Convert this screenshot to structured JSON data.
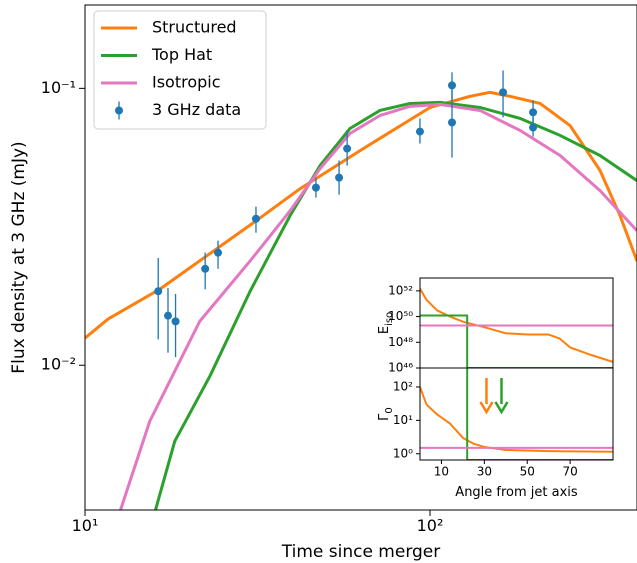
{
  "chart_data": [
    {
      "type": "line",
      "xlabel": "Time since merger",
      "ylabel": "Flux density at 3 GHz (mJy)",
      "xscale": "log",
      "yscale": "log",
      "xlim": [
        10,
        398
      ],
      "ylim": [
        0.003,
        0.2
      ],
      "xticks": [
        {
          "value": 10,
          "label": "10¹"
        },
        {
          "value": 100,
          "label": "10²"
        }
      ],
      "yticks": [
        {
          "value": 0.01,
          "label": "10⁻²"
        },
        {
          "value": 0.1,
          "label": "10⁻¹"
        }
      ],
      "legend": "upper left",
      "series": [
        {
          "name": "Structured",
          "color": "#ff7f0e",
          "kind": "line",
          "x": [
            10,
            11.66,
            16.5,
            31.3,
            42.0,
            62.7,
            100,
            130.6,
            149.2,
            170.6,
            208.4,
            254.6,
            311,
            355.4,
            398
          ],
          "values": [
            0.01253,
            0.01468,
            0.01885,
            0.0332,
            0.0434,
            0.0596,
            0.0853,
            0.0936,
            0.0967,
            0.0936,
            0.0882,
            0.0734,
            0.0505,
            0.0347,
            0.0238
          ]
        },
        {
          "name": "Top Hat",
          "color": "#2ca02c",
          "kind": "line",
          "x": [
            15.96,
            18.2,
            23.0,
            30.1,
            39.3,
            48.0,
            58.6,
            71.6,
            87.5,
            106.9,
            139.6,
            182.3,
            238.2,
            311,
            398
          ],
          "values": [
            0.00296,
            0.00531,
            0.00912,
            0.0185,
            0.0347,
            0.0526,
            0.0716,
            0.0832,
            0.0882,
            0.089,
            0.0853,
            0.0779,
            0.0676,
            0.0572,
            0.0464
          ]
        },
        {
          "name": "Isotropic",
          "color": "#e377c2",
          "kind": "line",
          "x": [
            12.63,
            15.4,
            21.5,
            30.1,
            39.3,
            48.0,
            58.6,
            71.6,
            87.5,
            106.9,
            139.6,
            182.3,
            238.2,
            311,
            398
          ],
          "values": [
            0.00296,
            0.00627,
            0.0144,
            0.0238,
            0.0361,
            0.0513,
            0.0687,
            0.0798,
            0.0861,
            0.0875,
            0.0832,
            0.0705,
            0.0572,
            0.0427,
            0.0306
          ]
        },
        {
          "name": "3 GHz data",
          "color": "#1f77b4",
          "kind": "errorbar",
          "x": [
            16.3,
            17.4,
            18.3,
            22.3,
            24.3,
            31.3,
            46.7,
            54.5,
            57.5,
            93.5,
            115.8,
            115.8,
            162.8,
            198.9,
            198.9
          ],
          "values": [
            0.0185,
            0.0151,
            0.0144,
            0.0223,
            0.0255,
            0.0338,
            0.0438,
            0.0476,
            0.0606,
            0.0698,
            0.1025,
            0.0753,
            0.0967,
            0.0819,
            0.0722
          ],
          "lower": [
            0.0124,
            0.0111,
            0.0107,
            0.0188,
            0.0223,
            0.0301,
            0.0403,
            0.0413,
            0.0526,
            0.0632,
            0.0905,
            0.0562,
            0.0785,
            0.0753,
            0.067
          ],
          "upper": [
            0.0244,
            0.019,
            0.0181,
            0.0255,
            0.0282,
            0.0374,
            0.0476,
            0.0549,
            0.0705,
            0.0779,
            0.1143,
            0.0983,
            0.116,
            0.0905,
            0.0792
          ]
        }
      ]
    },
    {
      "type": "line",
      "ylabel": "E",
      "ylabel_subscript": "iso",
      "xscale": "linear",
      "yscale": "log",
      "xlim": [
        0,
        90
      ],
      "ylim": [
        1e+46,
        1e+53
      ],
      "yticks": [
        {
          "value": 1e+46,
          "label": "10⁴⁶"
        },
        {
          "value": 1e+48,
          "label": "10⁴⁸"
        },
        {
          "value": 1e+50,
          "label": "10⁵⁰"
        },
        {
          "value": 1e+52,
          "label": "10⁵²"
        }
      ],
      "series": [
        {
          "color": "#ff7f0e",
          "x": [
            0,
            3,
            8,
            14,
            20,
            30,
            40,
            50,
            60,
            65,
            70,
            80,
            90
          ],
          "values": [
            1.5e+52,
            2e+51,
            3e+50,
            1e+50,
            4e+49,
            1.5e+49,
            5e+48,
            4e+48,
            4e+48,
            2e+48,
            4e+47,
            1e+47,
            3e+46
          ]
        },
        {
          "color": "#2ca02c",
          "x": [
            0,
            22,
            22,
            90
          ],
          "values": [
            1.2e+50,
            1.2e+50,
            1e+46,
            1e+46
          ]
        },
        {
          "color": "#e377c2",
          "x": [
            0,
            90
          ],
          "values": [
            2e+49,
            2e+49
          ]
        }
      ]
    },
    {
      "type": "line",
      "ylabel": "Γ",
      "ylabel_subscript": "0",
      "xlabel": "Angle from jet axis",
      "xscale": "linear",
      "yscale": "log",
      "xlim": [
        0,
        90
      ],
      "ylim": [
        0.65,
        370
      ],
      "xticks": [
        10,
        30,
        50,
        70
      ],
      "yticks": [
        {
          "value": 1,
          "label": "10⁰"
        },
        {
          "value": 10,
          "label": "10¹"
        },
        {
          "value": 100,
          "label": "10²"
        }
      ],
      "series": [
        {
          "color": "#ff7f0e",
          "x": [
            0,
            3,
            8,
            14,
            20,
            25,
            30,
            40,
            60,
            90
          ],
          "values": [
            100,
            30,
            15,
            8,
            3,
            2,
            1.6,
            1.3,
            1.2,
            1.15
          ]
        },
        {
          "color": "#2ca02c",
          "x": [
            0,
            22,
            22,
            90
          ],
          "values": [
            400,
            400,
            0.65,
            0.65
          ]
        },
        {
          "color": "#e377c2",
          "x": [
            0,
            90
          ],
          "values": [
            1.5,
            1.5
          ]
        }
      ],
      "arrows": [
        {
          "x": 31,
          "color": "#ff7f0e"
        },
        {
          "x": 38,
          "color": "#2ca02c"
        }
      ]
    }
  ]
}
